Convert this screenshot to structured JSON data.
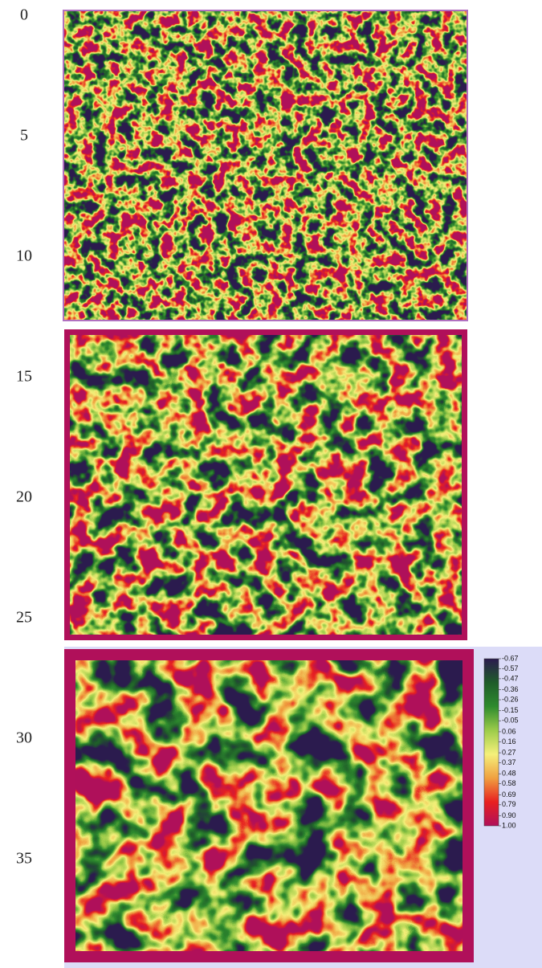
{
  "chart_data": {
    "type": "heatmap",
    "ylim": [
      -0.67,
      39.5
    ],
    "yticks": [
      0,
      5,
      10,
      15,
      20,
      25,
      30,
      35
    ],
    "colormap": [
      "#2b1b4e",
      "#1f5c2a",
      "#2e8b2e",
      "#9ccc4a",
      "#f5f07a",
      "#f0a040",
      "#e82020",
      "#b0105a"
    ],
    "clim": [
      -0.67,
      1
    ],
    "cticks": [
      -0.67,
      -0.57,
      -0.47,
      -0.36,
      -0.26,
      -0.15,
      -0.05,
      0.06,
      0.16,
      0.27,
      0.37,
      0.48,
      0.58,
      0.69,
      0.79,
      {
        "value": 0.9,
        "label": "0.90"
      },
      {
        "value": 1,
        "label": "1.00"
      }
    ]
  }
}
